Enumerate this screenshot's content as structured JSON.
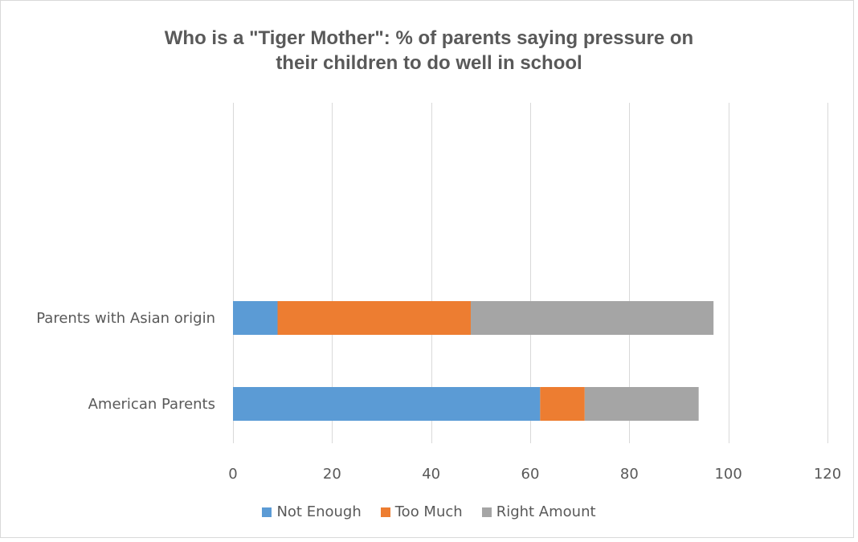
{
  "chart_data": {
    "type": "bar",
    "orientation": "horizontal",
    "stacked": true,
    "title_lines": [
      "Who is a \"Tiger Mother\": % of parents saying pressure on",
      "their children to do well in school"
    ],
    "categories": [
      "American Parents",
      "Parents with Asian origin"
    ],
    "series": [
      {
        "name": "Not Enough",
        "values": [
          62,
          9
        ],
        "color": "#5b9bd5"
      },
      {
        "name": "Too Much",
        "values": [
          9,
          39
        ],
        "color": "#ed7d31"
      },
      {
        "name": "Right Amount",
        "values": [
          23,
          49
        ],
        "color": "#a5a5a5"
      }
    ],
    "xlim": [
      0,
      120
    ],
    "xticks": [
      0,
      20,
      40,
      60,
      80,
      100,
      120
    ],
    "xtick_labels": [
      "0",
      "20",
      "40",
      "60",
      "80",
      "100",
      "120"
    ],
    "grid": "vertical",
    "legend_position": "bottom"
  }
}
